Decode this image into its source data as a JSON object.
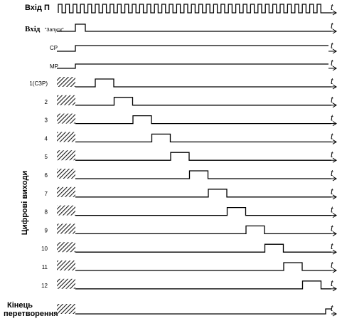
{
  "clock_label": "Вхід  П",
  "start_label_bold": "Вхід",
  "start_label_small": "\"Запуск\"",
  "cp_label": "CP",
  "mp_label": "MP",
  "digit_labels": [
    "1(СЗР)",
    "2",
    "3",
    "4",
    "5",
    "6",
    "7",
    "8",
    "9",
    "10",
    "11",
    "12"
  ],
  "digital_outputs_label": "Цифрові виходи",
  "end_label_line1": "Кінець",
  "end_label_line2": "перетворення",
  "time_axis_label": "t",
  "hatch_color": "#1a1a1a",
  "line_color": "#000000"
}
